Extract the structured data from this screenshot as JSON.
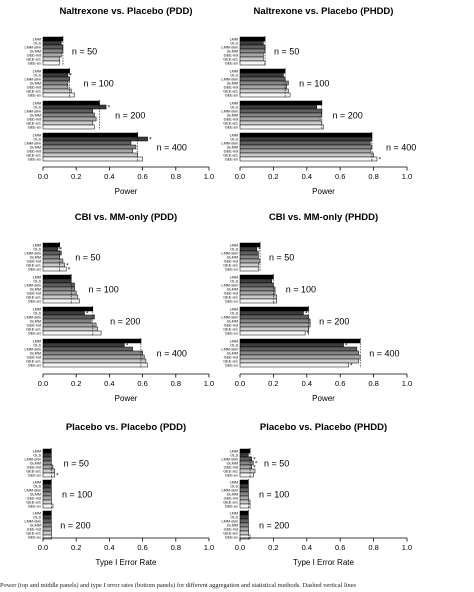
{
  "caption": "Power (top and middle panels) and type I error rates (bottom panels) for different aggregation and statistical methods. Dashed vertical lines",
  "colors": {
    "methods": [
      "#000000",
      "#3a3a3a",
      "#5f5f5f",
      "#858585",
      "#a6a6a6",
      "#c9c9c9",
      "#f4f4f4"
    ],
    "stroke": "#000000"
  },
  "chart_data": [
    {
      "type": "bar",
      "orientation": "horizontal",
      "title": "Naltrexone vs. Placebo (PDD)",
      "xlabel": "Power",
      "xlim": [
        0,
        1
      ],
      "xticks": [
        "0.0",
        "0.2",
        "0.4",
        "0.6",
        "0.8",
        "1.0"
      ],
      "methods": [
        "LMM",
        "OLS",
        "LMM-skin",
        "GLMM",
        "GEE-ind",
        "GEE-ar1",
        "GEE-ex"
      ],
      "groups": [
        {
          "label": "n = 50",
          "values": [
            0.12,
            0.11,
            0.12,
            0.12,
            0.11,
            0.1,
            0.1
          ],
          "stars": []
        },
        {
          "label": "n = 100",
          "values": [
            0.16,
            0.15,
            0.16,
            0.15,
            0.15,
            0.17,
            0.19
          ],
          "stars": [
            1
          ]
        },
        {
          "label": "n = 200",
          "values": [
            0.34,
            0.38,
            0.3,
            0.31,
            0.32,
            0.3,
            0.31
          ],
          "stars": [
            1
          ]
        },
        {
          "label": "n = 400",
          "values": [
            0.57,
            0.63,
            0.53,
            0.56,
            0.54,
            0.57,
            0.6
          ],
          "stars": [
            1
          ]
        }
      ]
    },
    {
      "type": "bar",
      "orientation": "horizontal",
      "title": "Naltrexone vs. Placebo (PHDD)",
      "xlabel": "Power",
      "xlim": [
        0,
        1
      ],
      "xticks": [
        "0.0",
        "0.2",
        "0.4",
        "0.6",
        "0.8",
        "1.0"
      ],
      "methods": [
        "LMM",
        "OLS",
        "LMM-skin",
        "GLMM",
        "GEE-ind",
        "GEE-ar1",
        "GEE-ex"
      ],
      "groups": [
        {
          "label": "n = 50",
          "values": [
            0.15,
            0.14,
            0.15,
            0.15,
            0.14,
            0.14,
            0.15
          ],
          "stars": []
        },
        {
          "label": "n = 100",
          "values": [
            0.27,
            0.26,
            0.27,
            0.29,
            0.28,
            0.29,
            0.3
          ],
          "stars": []
        },
        {
          "label": "n = 200",
          "values": [
            0.49,
            0.46,
            0.49,
            0.49,
            0.48,
            0.49,
            0.5
          ],
          "stars": []
        },
        {
          "label": "n = 400",
          "values": [
            0.79,
            0.79,
            0.78,
            0.79,
            0.78,
            0.8,
            0.82
          ],
          "stars": [
            6
          ]
        }
      ]
    },
    {
      "type": "bar",
      "orientation": "horizontal",
      "title": "CBI vs. MM-only (PDD)",
      "xlabel": "Power",
      "xlim": [
        0,
        1
      ],
      "xticks": [
        "0.0",
        "0.2",
        "0.4",
        "0.6",
        "0.8",
        "1.0"
      ],
      "methods": [
        "LMM",
        "OLS",
        "LMM-skin",
        "GLMM",
        "GEE-ind",
        "GEE-ar1",
        "GEE-ex"
      ],
      "groups": [
        {
          "label": "n = 50",
          "values": [
            0.1,
            0.09,
            0.11,
            0.1,
            0.12,
            0.13,
            0.14
          ],
          "stars": [
            1,
            5,
            6
          ]
        },
        {
          "label": "n = 100",
          "values": [
            0.17,
            0.17,
            0.19,
            0.19,
            0.2,
            0.21,
            0.22
          ],
          "stars": []
        },
        {
          "label": "n = 200",
          "values": [
            0.3,
            0.25,
            0.31,
            0.29,
            0.32,
            0.33,
            0.35
          ],
          "stars": [
            1
          ]
        },
        {
          "label": "n = 400",
          "values": [
            0.59,
            0.49,
            0.54,
            0.6,
            0.61,
            0.62,
            0.63
          ],
          "stars": [
            1
          ]
        }
      ]
    },
    {
      "type": "bar",
      "orientation": "horizontal",
      "title": "CBI vs. MM-only (PHDD)",
      "xlabel": "Power",
      "xlim": [
        0,
        1
      ],
      "xticks": [
        "0.0",
        "0.2",
        "0.4",
        "0.6",
        "0.8",
        "1.0"
      ],
      "methods": [
        "LMM",
        "OLS",
        "LMM-skin",
        "GLMM",
        "GEE-ind",
        "GEE-ar1",
        "GEE-ex"
      ],
      "groups": [
        {
          "label": "n = 50",
          "values": [
            0.12,
            0.1,
            0.11,
            0.11,
            0.12,
            0.11,
            0.11
          ],
          "stars": [
            1
          ]
        },
        {
          "label": "n = 100",
          "values": [
            0.2,
            0.19,
            0.2,
            0.21,
            0.21,
            0.22,
            0.22
          ],
          "stars": []
        },
        {
          "label": "n = 200",
          "values": [
            0.41,
            0.38,
            0.41,
            0.42,
            0.42,
            0.41,
            0.39
          ],
          "stars": [
            1,
            6
          ]
        },
        {
          "label": "n = 400",
          "values": [
            0.72,
            0.62,
            0.7,
            0.71,
            0.72,
            0.71,
            0.65
          ],
          "stars": [
            1,
            6
          ]
        }
      ]
    },
    {
      "type": "bar",
      "orientation": "horizontal",
      "title": "Placebo vs. Placebo (PDD)",
      "xlabel": "Type I Error Rate",
      "xlim": [
        0,
        1
      ],
      "xticks": [
        "0.0",
        "0.2",
        "0.4",
        "0.6",
        "0.8",
        "1.0"
      ],
      "methods": [
        "LMM",
        "OLS",
        "LMM-skin",
        "GLMM",
        "GEE-ind",
        "GEE-ar1",
        "GEE-ex"
      ],
      "groups": [
        {
          "label": "n = 50",
          "values": [
            0.05,
            0.05,
            0.05,
            0.05,
            0.06,
            0.07,
            0.07
          ],
          "stars": [
            6
          ]
        },
        {
          "label": "n = 100",
          "values": [
            0.05,
            0.05,
            0.05,
            0.05,
            0.05,
            0.05,
            0.06
          ],
          "stars": []
        },
        {
          "label": "n = 200",
          "values": [
            0.05,
            0.05,
            0.05,
            0.05,
            0.05,
            0.05,
            0.05
          ],
          "stars": []
        }
      ]
    },
    {
      "type": "bar",
      "orientation": "horizontal",
      "title": "Placebo vs. Placebo (PHDD)",
      "xlabel": "Type I Error Rate",
      "xlim": [
        0,
        1
      ],
      "xticks": [
        "0.0",
        "0.2",
        "0.4",
        "0.6",
        "0.8",
        "1.0"
      ],
      "methods": [
        "LMM",
        "OLS",
        "LMM-skin",
        "GLMM",
        "GEE-ind",
        "GEE-ar1",
        "GEE-ex"
      ],
      "groups": [
        {
          "label": "n = 50",
          "values": [
            0.06,
            0.05,
            0.07,
            0.08,
            0.07,
            0.09,
            0.08
          ],
          "stars": [
            2,
            3,
            4
          ]
        },
        {
          "label": "n = 100",
          "values": [
            0.05,
            0.05,
            0.05,
            0.05,
            0.05,
            0.06,
            0.06
          ],
          "stars": []
        },
        {
          "label": "n = 200",
          "values": [
            0.05,
            0.05,
            0.05,
            0.05,
            0.05,
            0.05,
            0.06
          ],
          "stars": []
        }
      ]
    }
  ]
}
